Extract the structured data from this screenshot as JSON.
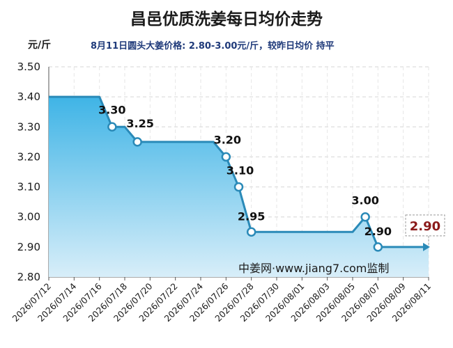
{
  "title": "昌邑优质洗姜每日均价走势",
  "unit_label": "元/斤",
  "subtitle": "8月11日圆头大姜价格: 2.80-3.00元/斤，较昨日均价 持平",
  "watermark": "中姜网·www.jiang7.com监制",
  "colors": {
    "line": "#2a8ab8",
    "area_top": "#3fb4e6",
    "area_bottom": "#d8eef9",
    "last_label": "#8b1a1a"
  },
  "chart_data": {
    "type": "area",
    "x_tick_labels": [
      "2026/07/12",
      "2026/07/14",
      "2026/07/16",
      "2026/07/18",
      "2026/07/20",
      "2026/07/22",
      "2026/07/24",
      "2026/07/26",
      "2026/07/28",
      "2026/07/30",
      "2026/08/01",
      "2026/08/03",
      "2026/08/05",
      "2026/08/07",
      "2026/08/09",
      "2026/08/11"
    ],
    "ylim": [
      2.8,
      3.5
    ],
    "y_ticks": [
      "2.80",
      "2.90",
      "3.00",
      "3.10",
      "3.20",
      "3.30",
      "3.40",
      "3.50"
    ],
    "points": [
      {
        "x": "2026/07/12",
        "y": 3.4
      },
      {
        "x": "2026/07/16",
        "y": 3.4
      },
      {
        "x": "2026/07/17",
        "y": 3.3
      },
      {
        "x": "2026/07/18",
        "y": 3.3
      },
      {
        "x": "2026/07/19",
        "y": 3.25
      },
      {
        "x": "2026/07/25",
        "y": 3.25
      },
      {
        "x": "2026/07/26",
        "y": 3.2
      },
      {
        "x": "2026/07/27",
        "y": 3.1
      },
      {
        "x": "2026/07/28",
        "y": 2.95
      },
      {
        "x": "2026/08/05",
        "y": 2.95
      },
      {
        "x": "2026/08/06",
        "y": 3.0
      },
      {
        "x": "2026/08/07",
        "y": 2.9
      },
      {
        "x": "2026/08/11",
        "y": 2.9
      }
    ],
    "data_labels": [
      {
        "x": "2026/07/17",
        "value": "3.30"
      },
      {
        "x": "2026/07/19",
        "value": "3.25"
      },
      {
        "x": "2026/07/26",
        "value": "3.20"
      },
      {
        "x": "2026/07/27",
        "value": "3.10"
      },
      {
        "x": "2026/07/28",
        "value": "2.95"
      },
      {
        "x": "2026/08/06",
        "value": "3.00"
      },
      {
        "x": "2026/08/07",
        "value": "2.90"
      }
    ],
    "last_value_label": "2.90",
    "grid": true
  }
}
